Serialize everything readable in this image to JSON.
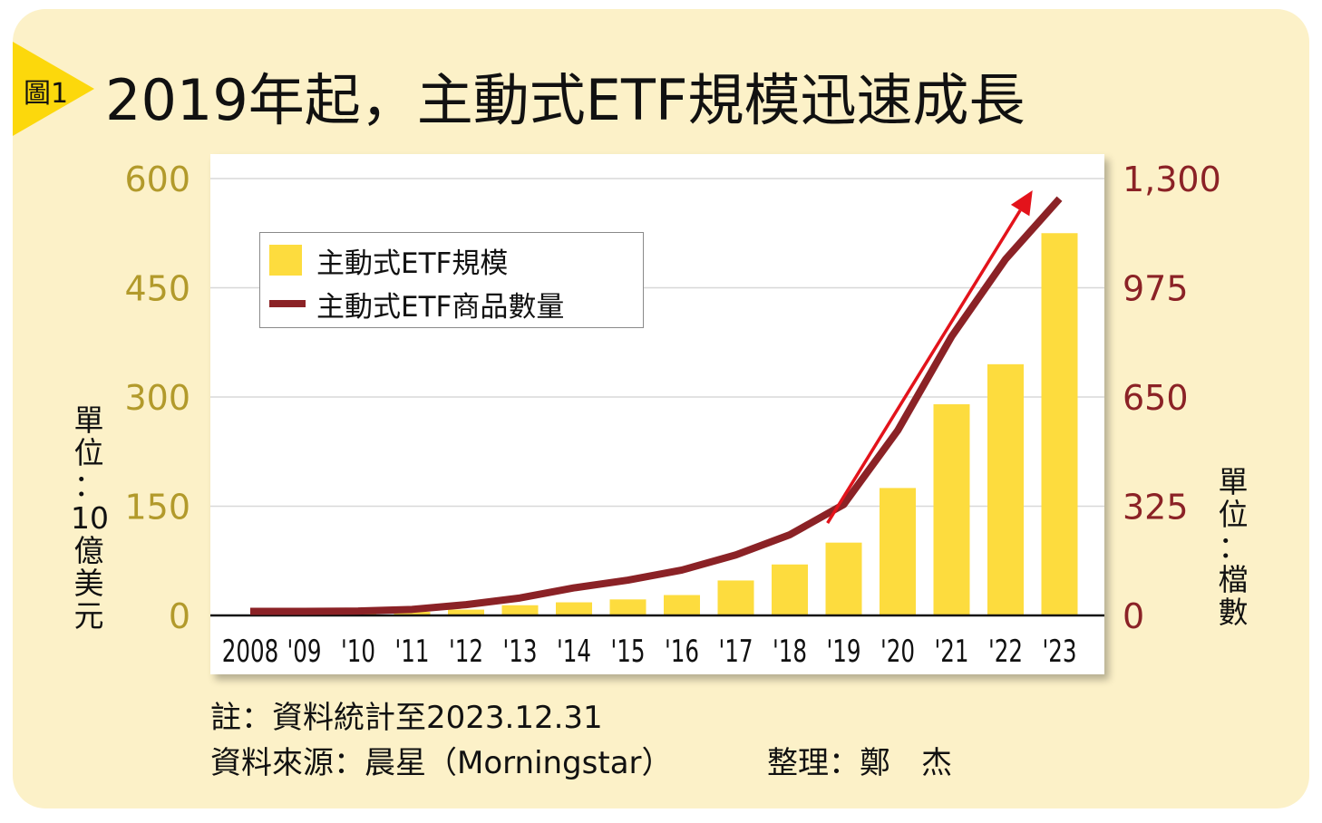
{
  "figure": {
    "number_label": "圖1",
    "title": "2019年起，主動式ETF規模迅速成長"
  },
  "left_unit": "單\n位\n：\n10\n億\n美\n元",
  "right_unit": "單\n位\n：\n檔\n數",
  "notes": {
    "note": "註：資料統計至2023.12.31",
    "source": "資料來源：晨星（Morningstar）",
    "compiler": "整理：鄭　杰"
  },
  "colors": {
    "card_bg": "#fcf1c8",
    "bar": "#fddc3e",
    "line": "#8b2226",
    "arrow": "#e3131b",
    "left_axis_text": "#b29a2b",
    "right_axis_text": "#8b2226",
    "grid": "#d8d8d8"
  },
  "chart_data": {
    "type": "bar",
    "categories": [
      "2008",
      "'09",
      "'10",
      "'11",
      "'12",
      "'13",
      "'14",
      "'15",
      "'16",
      "'17",
      "'18",
      "'19",
      "'20",
      "'21",
      "'22",
      "'23"
    ],
    "series": [
      {
        "name": "主動式ETF規模",
        "type": "bar",
        "axis": "left",
        "values": [
          1,
          2,
          3,
          5,
          8,
          14,
          18,
          22,
          28,
          48,
          70,
          100,
          175,
          290,
          345,
          525
        ]
      },
      {
        "name": "主動式ETF商品數量",
        "type": "line",
        "axis": "right",
        "values": [
          12,
          12,
          13,
          18,
          32,
          52,
          82,
          105,
          135,
          180,
          240,
          330,
          550,
          830,
          1060,
          1240
        ]
      }
    ],
    "y_left": {
      "ticks": [
        "0",
        "150",
        "300",
        "450",
        "600"
      ],
      "min": 0,
      "max": 600
    },
    "y_right": {
      "ticks": [
        "0",
        "325",
        "650",
        "975",
        "1,300"
      ],
      "min": 0,
      "max": 1300
    },
    "grid": true,
    "legend_position": "top-left",
    "annotation": "trend-arrow"
  }
}
